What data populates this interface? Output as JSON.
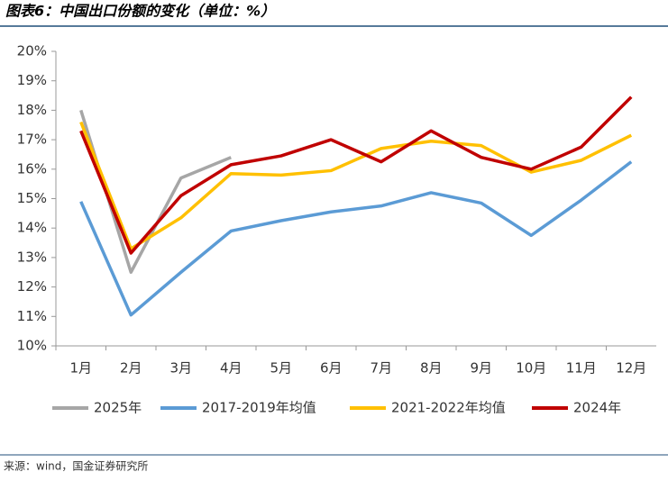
{
  "chart_data": {
    "type": "line",
    "title": "图表6：中国出口份额的变化（单位：%）",
    "source": "来源：wind，国金证券研究所",
    "categories": [
      "1月",
      "2月",
      "3月",
      "4月",
      "5月",
      "6月",
      "7月",
      "8月",
      "9月",
      "10月",
      "11月",
      "12月"
    ],
    "series": [
      {
        "name": "2025年",
        "color": "#a6a6a6",
        "values": [
          18.0,
          12.5,
          15.7,
          16.4,
          null,
          null,
          null,
          null,
          null,
          null,
          null,
          null
        ]
      },
      {
        "name": "2017-2019年均值",
        "color": "#5b9bd5",
        "values": [
          14.9,
          11.05,
          12.5,
          13.9,
          14.25,
          14.55,
          14.75,
          15.2,
          14.85,
          13.75,
          14.95,
          16.25
        ]
      },
      {
        "name": "2021-2022年均值",
        "color": "#ffc000",
        "values": [
          17.6,
          13.3,
          14.35,
          15.85,
          15.8,
          15.95,
          16.7,
          16.95,
          16.8,
          15.9,
          16.3,
          17.15
        ]
      },
      {
        "name": "2024年",
        "color": "#c00000",
        "values": [
          17.3,
          13.15,
          15.1,
          16.15,
          16.45,
          17.0,
          16.25,
          17.3,
          16.4,
          16.0,
          16.75,
          18.45
        ]
      }
    ],
    "ylim": [
      10,
      20
    ],
    "yticks": [
      {
        "value": 10,
        "label": "10%"
      },
      {
        "value": 11,
        "label": "11%"
      },
      {
        "value": 12,
        "label": "12%"
      },
      {
        "value": 13,
        "label": "13%"
      },
      {
        "value": 14,
        "label": "14%"
      },
      {
        "value": 15,
        "label": "15%"
      },
      {
        "value": 16,
        "label": "16%"
      },
      {
        "value": 17,
        "label": "17%"
      },
      {
        "value": 18,
        "label": "18%"
      },
      {
        "value": 19,
        "label": "19%"
      },
      {
        "value": 20,
        "label": "20%"
      }
    ],
    "legend": "bottom"
  }
}
